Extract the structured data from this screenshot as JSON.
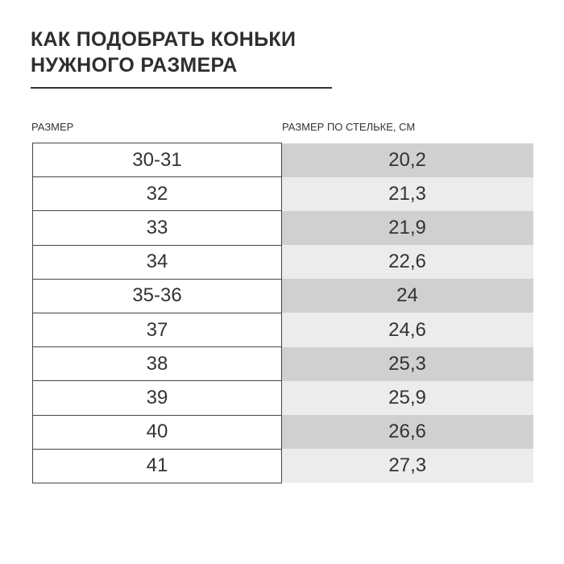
{
  "title": {
    "line1": "КАК ПОДОБРАТЬ КОНЬКИ",
    "line2": "НУЖНОГО РАЗМЕРА"
  },
  "table": {
    "headers": [
      "РАЗМЕР",
      "РАЗМЕР ПО СТЕЛЬКЕ, СМ"
    ],
    "rows": [
      [
        "30-31",
        "20,2"
      ],
      [
        "32",
        "21,3"
      ],
      [
        "33",
        "21,9"
      ],
      [
        "34",
        "22,6"
      ],
      [
        "35-36",
        "24"
      ],
      [
        "37",
        "24,6"
      ],
      [
        "38",
        "25,3"
      ],
      [
        "39",
        "25,9"
      ],
      [
        "40",
        "26,6"
      ],
      [
        "41",
        "27,3"
      ]
    ]
  },
  "colors": {
    "row_dark": "#d0d0d0",
    "row_light": "#ececec",
    "text": "#333333"
  }
}
